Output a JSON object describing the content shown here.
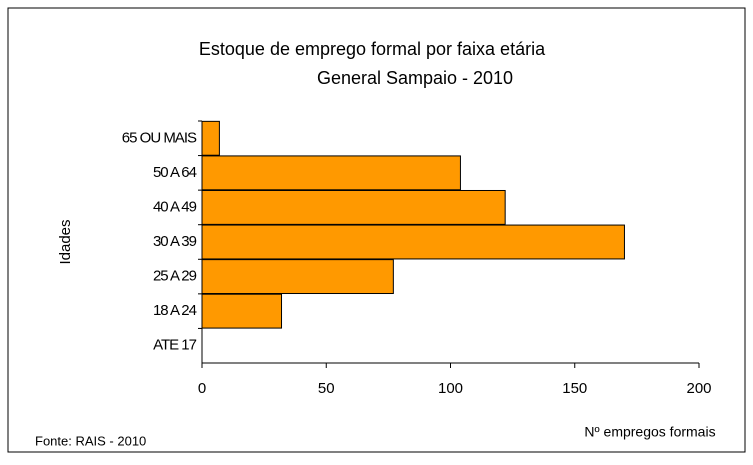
{
  "chart_data": {
    "type": "bar",
    "orientation": "horizontal",
    "title": "Estoque de emprego formal por faixa etária",
    "subtitle": "General Sampaio - 2010",
    "y_label": "Idades",
    "x_label": "Nº empregos formais",
    "source": "Fonte: RAIS - 2010",
    "categories": [
      "65 OU MAIS",
      "50 A 64",
      "40 A 49",
      "30 A 39",
      "25 A 29",
      "18 A 24",
      "ATE 17"
    ],
    "values": [
      7,
      104,
      122,
      170,
      77,
      32,
      0
    ],
    "color": "#ff9900",
    "xlim": [
      0,
      200
    ],
    "xticks": [
      0,
      50,
      100,
      150,
      200
    ],
    "grid": false
  }
}
